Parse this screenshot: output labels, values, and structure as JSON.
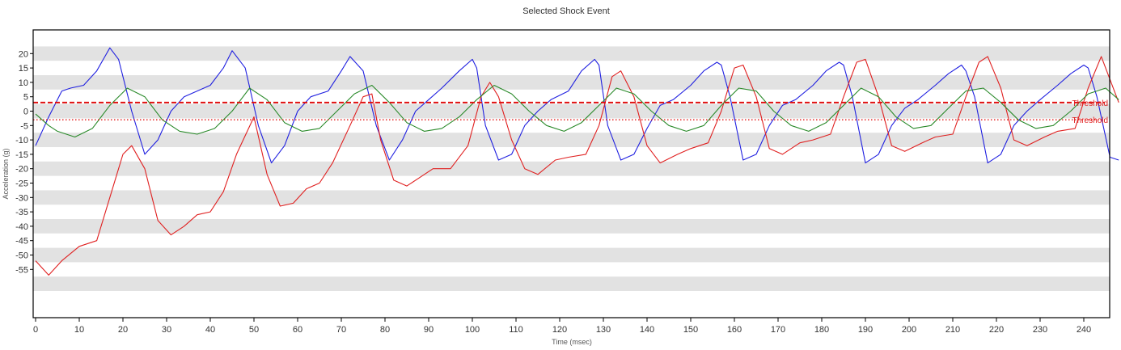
{
  "chart_data": {
    "type": "line",
    "title": "Selected Shock Event",
    "xlabel": "Time (msec)",
    "ylabel": "Acceleration (g)",
    "xlim": [
      0,
      248
    ],
    "ylim": [
      -60,
      24
    ],
    "x_ticks": [
      0,
      10,
      20,
      30,
      40,
      50,
      60,
      70,
      80,
      90,
      100,
      110,
      120,
      130,
      140,
      150,
      160,
      170,
      180,
      190,
      200,
      210,
      220,
      230,
      240
    ],
    "y_ticks": [
      20,
      15,
      10,
      5,
      0,
      -5,
      -10,
      -15,
      -20,
      -25,
      -30,
      -35,
      -40,
      -45,
      -50,
      -55
    ],
    "banded_background": true,
    "thresholds": [
      {
        "label": "Threshold",
        "value": 3,
        "style": "dashed",
        "color": "#e01010"
      },
      {
        "label": "Threshold",
        "value": -3,
        "style": "dotted",
        "color": "#e01010"
      }
    ],
    "series": [
      {
        "color": "#2020e0",
        "x": [
          0,
          3,
          6,
          8,
          11,
          14,
          17,
          19,
          22,
          25,
          28,
          31,
          34,
          37,
          40,
          43,
          45,
          48,
          51,
          54,
          57,
          60,
          63,
          67,
          70,
          72,
          75,
          78,
          81,
          84,
          87,
          90,
          93,
          97,
          100,
          101,
          103,
          106,
          109,
          112,
          115,
          118,
          122,
          125,
          128,
          129,
          131,
          134,
          137,
          140,
          143,
          146,
          150,
          153,
          156,
          157,
          159,
          162,
          165,
          168,
          171,
          174,
          178,
          181,
          184,
          185,
          187,
          190,
          193,
          196,
          199,
          202,
          206,
          209,
          212,
          213,
          215,
          218,
          221,
          224,
          227,
          230,
          234,
          237,
          240,
          241,
          243,
          246,
          248
        ],
        "y": [
          -12,
          -2,
          7,
          8,
          9,
          14,
          22,
          18,
          0,
          -15,
          -10,
          0,
          5,
          7,
          9,
          15,
          21,
          15,
          -5,
          -18,
          -12,
          0,
          5,
          7,
          14,
          19,
          14,
          -5,
          -17,
          -10,
          0,
          4,
          8,
          14,
          18,
          15,
          -5,
          -17,
          -15,
          -5,
          0,
          4,
          7,
          14,
          18,
          16,
          -5,
          -17,
          -15,
          -6,
          2,
          4,
          9,
          14,
          17,
          16,
          5,
          -17,
          -15,
          -5,
          2,
          4,
          9,
          14,
          17,
          16,
          5,
          -18,
          -15,
          -5,
          1,
          4,
          9,
          13,
          16,
          14,
          5,
          -18,
          -15,
          -5,
          0,
          4,
          9,
          13,
          16,
          15,
          5,
          -16,
          -17
        ]
      },
      {
        "color": "#e02020",
        "x": [
          0,
          3,
          6,
          10,
          14,
          17,
          20,
          22,
          25,
          28,
          31,
          34,
          37,
          40,
          43,
          46,
          50,
          53,
          56,
          59,
          62,
          65,
          68,
          72,
          75,
          77,
          79,
          82,
          85,
          88,
          91,
          95,
          99,
          102,
          104,
          106,
          109,
          112,
          115,
          119,
          122,
          126,
          129,
          132,
          134,
          137,
          140,
          143,
          147,
          150,
          154,
          157,
          160,
          162,
          165,
          168,
          171,
          175,
          178,
          182,
          185,
          188,
          190,
          193,
          196,
          199,
          203,
          206,
          210,
          213,
          216,
          218,
          221,
          224,
          227,
          231,
          234,
          238,
          241,
          244,
          248
        ],
        "y": [
          -52,
          -57,
          -52,
          -47,
          -45,
          -30,
          -15,
          -12,
          -20,
          -38,
          -43,
          -40,
          -36,
          -35,
          -28,
          -15,
          -2,
          -22,
          -33,
          -32,
          -27,
          -25,
          -18,
          -5,
          5,
          6,
          -10,
          -24,
          -26,
          -23,
          -20,
          -20,
          -12,
          5,
          10,
          5,
          -10,
          -20,
          -22,
          -17,
          -16,
          -15,
          -5,
          12,
          14,
          5,
          -12,
          -18,
          -15,
          -13,
          -11,
          0,
          15,
          16,
          5,
          -13,
          -15,
          -11,
          -10,
          -8,
          5,
          17,
          18,
          5,
          -12,
          -14,
          -11,
          -9,
          -8,
          5,
          17,
          19,
          8,
          -10,
          -12,
          -9,
          -7,
          -6,
          8,
          19,
          3
        ]
      },
      {
        "color": "#2a8a2a",
        "x": [
          0,
          3,
          5,
          9,
          13,
          17,
          21,
          25,
          29,
          33,
          37,
          41,
          45,
          49,
          53,
          57,
          61,
          65,
          69,
          73,
          77,
          81,
          85,
          89,
          93,
          97,
          101,
          105,
          109,
          113,
          117,
          121,
          125,
          129,
          133,
          137,
          141,
          145,
          149,
          153,
          157,
          161,
          165,
          169,
          173,
          177,
          181,
          185,
          189,
          193,
          197,
          201,
          205,
          209,
          213,
          217,
          221,
          225,
          229,
          233,
          237,
          241,
          245,
          248
        ],
        "y": [
          -1,
          -5,
          -7,
          -9,
          -6,
          2,
          8,
          5,
          -3,
          -7,
          -8,
          -6,
          0,
          8,
          4,
          -4,
          -7,
          -6,
          0,
          6,
          9,
          3,
          -4,
          -7,
          -6,
          -2,
          4,
          9,
          6,
          0,
          -5,
          -7,
          -4,
          2,
          8,
          6,
          0,
          -5,
          -7,
          -5,
          2,
          8,
          7,
          0,
          -5,
          -7,
          -4,
          2,
          8,
          5,
          -2,
          -6,
          -5,
          1,
          7,
          8,
          3,
          -3,
          -6,
          -5,
          0,
          6,
          8,
          4
        ]
      }
    ]
  }
}
